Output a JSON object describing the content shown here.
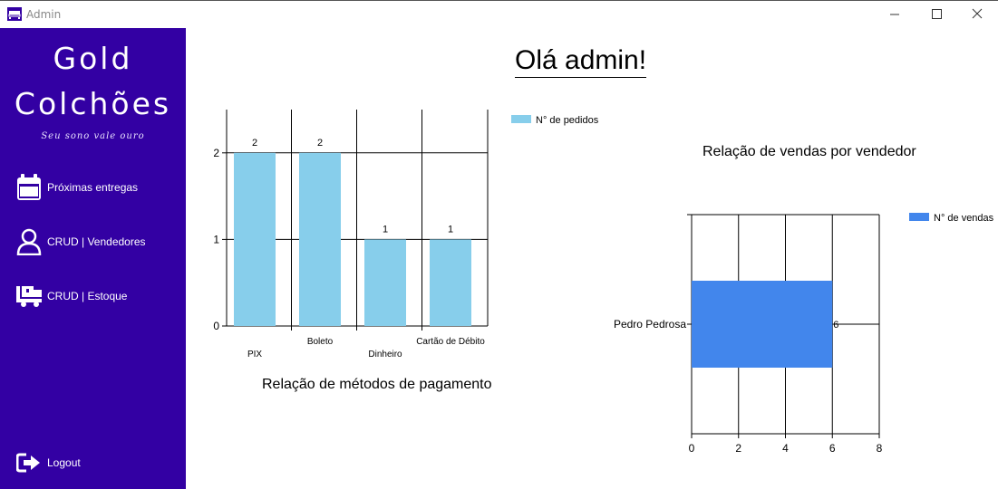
{
  "window": {
    "title": "Admin",
    "icon": "bed-icon",
    "controls": [
      "minimize-icon",
      "maximize-icon",
      "close-icon"
    ]
  },
  "sidebar": {
    "brand_line1": "Gold",
    "brand_line2": "Colchões",
    "tagline": "Seu sono vale ouro",
    "items": [
      {
        "label": "Próximas entregas",
        "icon": "calendar-icon"
      },
      {
        "label": "CRUD | Vendedores",
        "icon": "user-icon"
      },
      {
        "label": "CRUD | Estoque",
        "icon": "truck-icon"
      }
    ],
    "logout_label": "Logout",
    "logout_icon": "logout-icon",
    "background": "#3300a3"
  },
  "main": {
    "greeting": "Olá admin!"
  },
  "chart_data": [
    {
      "type": "bar",
      "title": "Relação de métodos de pagamento",
      "categories": [
        "PIX",
        "Boleto",
        "Dinheiro",
        "Cartão de Débito"
      ],
      "series": [
        {
          "name": "N° de pedidos",
          "values": [
            2,
            2,
            1,
            1
          ],
          "color": "#87ceeb"
        }
      ],
      "yticks": [
        0,
        1,
        2
      ],
      "ylim": [
        0,
        2.5
      ],
      "grid": true,
      "legend": "top-right",
      "data_labels": true
    },
    {
      "type": "bar",
      "orientation": "horizontal",
      "title": "Relação de vendas por vendedor",
      "categories": [
        "Pedro Pedrosa"
      ],
      "series": [
        {
          "name": "N° de vendas",
          "values": [
            6
          ],
          "color": "#4286ec"
        }
      ],
      "xticks": [
        0,
        2,
        4,
        6,
        8
      ],
      "xlim": [
        0,
        8
      ],
      "grid": true,
      "legend": "top-right",
      "data_labels": true
    }
  ]
}
